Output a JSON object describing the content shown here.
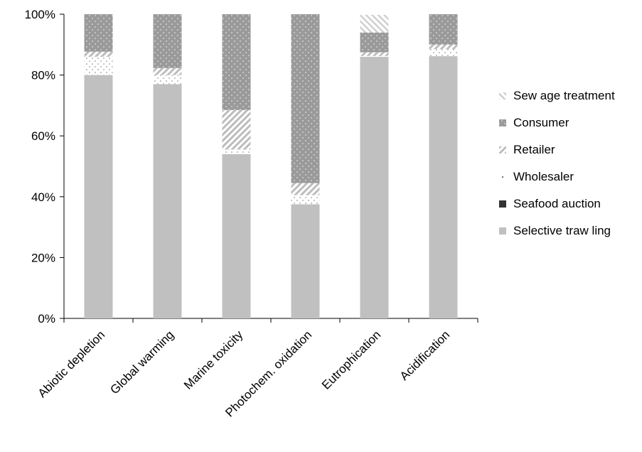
{
  "chart_data": {
    "type": "bar",
    "stacked": true,
    "percent": true,
    "categories": [
      "Abiotic depletion",
      "Global warming",
      "Marine toxicity",
      "Photochem. oxidation",
      "Eutrophication",
      "Acidification"
    ],
    "ylim": [
      0,
      100
    ],
    "yticks": [
      "0%",
      "20%",
      "40%",
      "60%",
      "80%",
      "100%"
    ],
    "grid": false,
    "legend_position": "right",
    "series": [
      {
        "name": "Selective traw ling",
        "values": [
          80,
          77,
          54,
          37.5,
          86,
          86.2
        ],
        "color": "#c0c0c0",
        "pattern": "solid"
      },
      {
        "name": "Seafood auction",
        "values": [
          0,
          0,
          0,
          0,
          0,
          0
        ],
        "color": "#333333",
        "pattern": "solid"
      },
      {
        "name": "Wholesaler",
        "values": [
          6,
          3,
          1.5,
          3,
          0.3,
          2.3
        ],
        "color": "#ffffff",
        "pattern": "dots"
      },
      {
        "name": "Retailer",
        "values": [
          1.7,
          2.3,
          13,
          4,
          1.2,
          1.5
        ],
        "color": "#d8d8d8",
        "pattern": "diag"
      },
      {
        "name": "Consumer",
        "values": [
          12.3,
          17.7,
          31.5,
          55.5,
          6.5,
          10
        ],
        "color": "#a6a6a6",
        "pattern": "dotted-dark"
      },
      {
        "name": "Sew age treatment",
        "values": [
          0,
          0,
          0,
          0,
          5.8,
          0
        ],
        "color": "#ffffff",
        "pattern": "diag-light"
      }
    ]
  }
}
